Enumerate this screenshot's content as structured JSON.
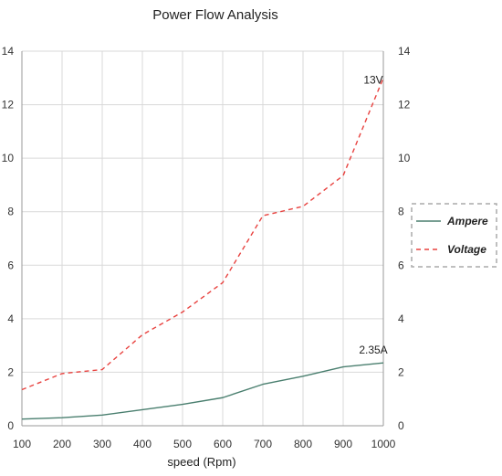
{
  "chart_data": {
    "type": "line",
    "title": "Power Flow Analysis",
    "xlabel": "speed (Rpm)",
    "ylabel": "",
    "x": [
      100,
      200,
      300,
      400,
      500,
      600,
      700,
      800,
      900,
      1000
    ],
    "xlim": [
      100,
      1000
    ],
    "ylim": [
      0,
      14
    ],
    "xticks": [
      "100",
      "200",
      "300",
      "400",
      "500",
      "600",
      "700",
      "800",
      "900",
      "1000"
    ],
    "yticks": [
      "0",
      "2",
      "4",
      "6",
      "8",
      "10",
      "12",
      "14"
    ],
    "yticks_right": [
      "0",
      "2",
      "4",
      "6",
      "8",
      "10",
      "12",
      "14"
    ],
    "grid": true,
    "legend_position": "right",
    "series": [
      {
        "name": "Ampere",
        "color": "#4a7f6f",
        "line_style": "solid",
        "values": [
          0.25,
          0.3,
          0.4,
          0.6,
          0.8,
          1.05,
          1.55,
          1.85,
          2.2,
          2.35
        ]
      },
      {
        "name": "Voltage",
        "color": "#e8423f",
        "line_style": "dashed",
        "values": [
          1.35,
          1.95,
          2.1,
          3.4,
          4.25,
          5.35,
          7.85,
          8.2,
          9.35,
          13.0
        ]
      }
    ],
    "annotations": [
      {
        "text": "13V",
        "series": "Voltage",
        "x": 1000,
        "y": 13.0
      },
      {
        "text": "2.35A",
        "series": "Ampere",
        "x": 1000,
        "y": 2.35
      }
    ]
  }
}
